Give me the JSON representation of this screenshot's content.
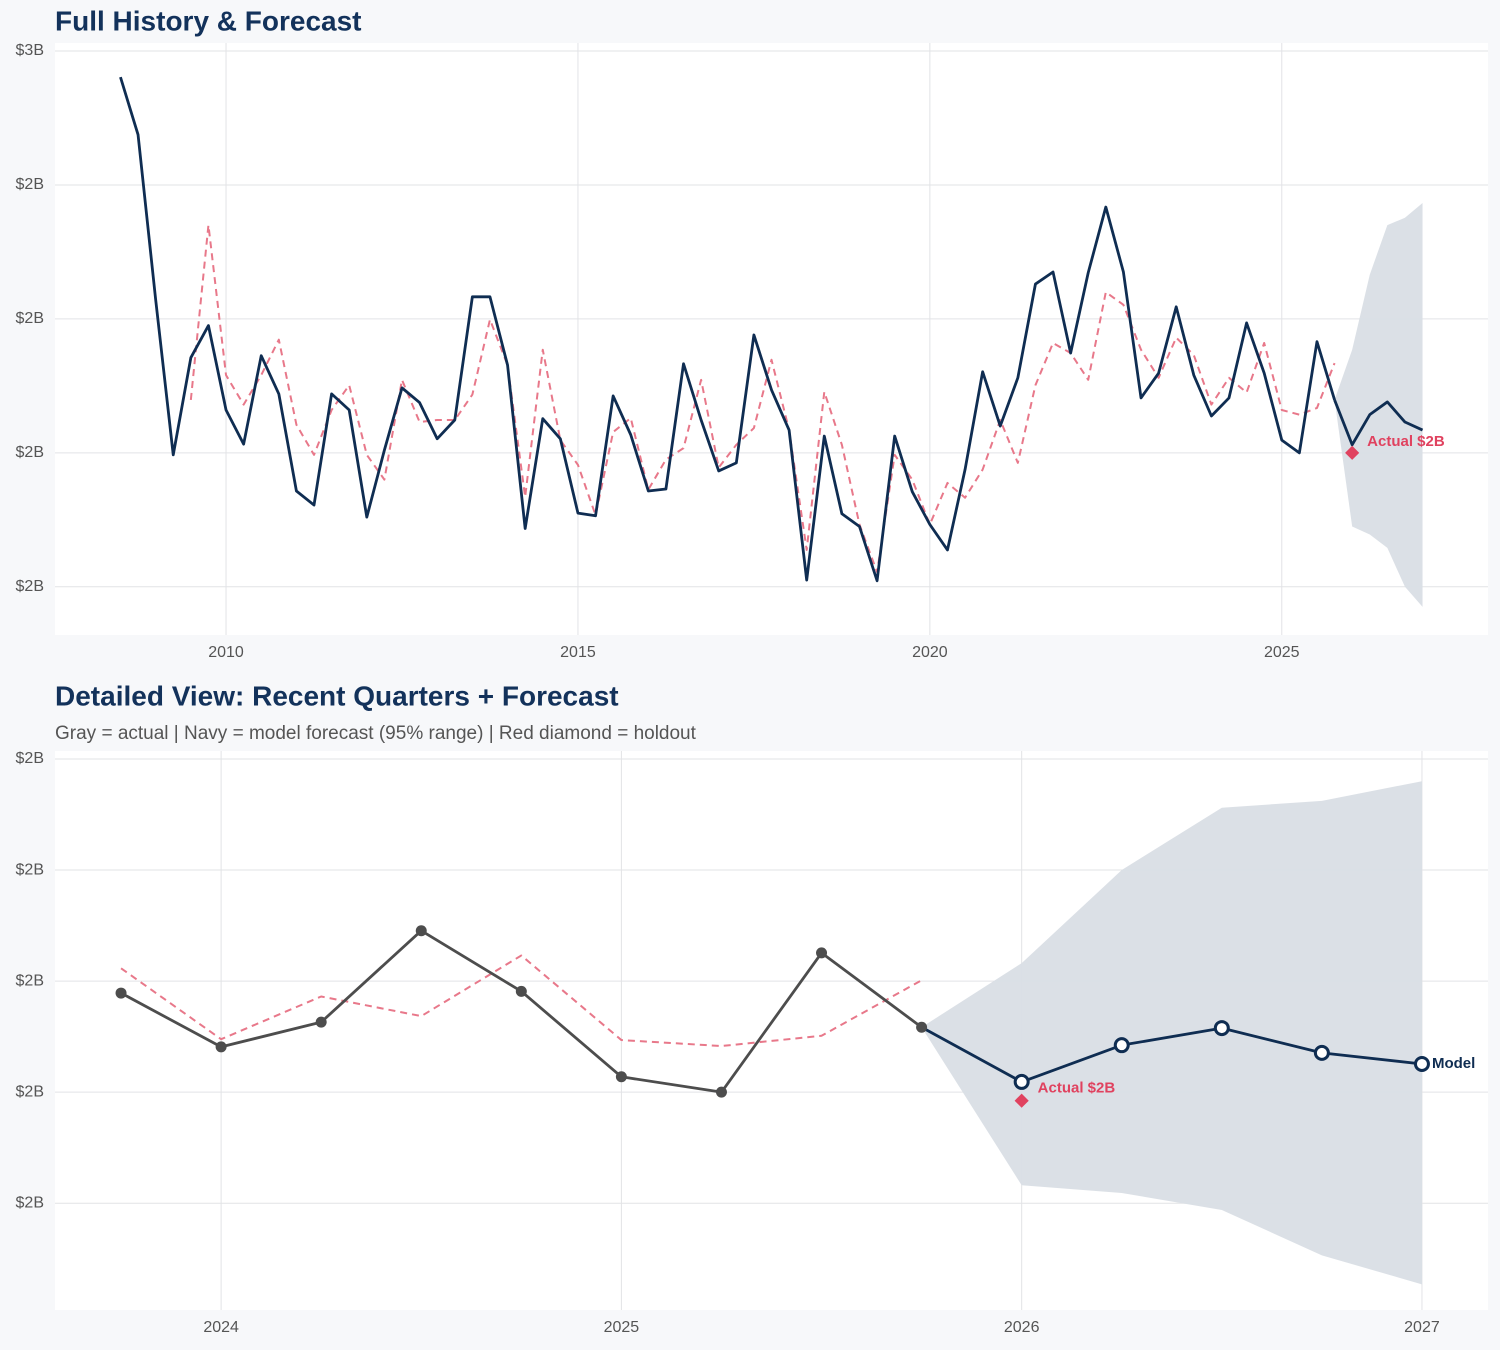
{
  "chart_data": [
    {
      "type": "line",
      "title": "Full History & Forecast",
      "xlim": [
        2007.57,
        2027.93
      ],
      "xticks": [
        2010,
        2015,
        2020,
        2025
      ],
      "ylim": [
        1.728,
        2.6
      ],
      "yticks": [
        {
          "value": 2.6,
          "label": "$3B"
        },
        {
          "value": 2.4,
          "label": "$2B"
        },
        {
          "value": 2.2,
          "label": "$2B"
        },
        {
          "value": 2.0,
          "label": "$2B"
        },
        {
          "value": 1.8,
          "label": "$2B"
        }
      ],
      "grid": true,
      "markers": false,
      "x": [
        2008.5,
        2008.75,
        2009,
        2009.25,
        2009.5,
        2009.75,
        2010,
        2010.25,
        2010.5,
        2010.75,
        2011,
        2011.25,
        2011.5,
        2011.75,
        2012,
        2012.25,
        2012.5,
        2012.75,
        2013,
        2013.25,
        2013.5,
        2013.75,
        2014,
        2014.25,
        2014.5,
        2014.75,
        2015,
        2015.25,
        2015.5,
        2015.75,
        2016,
        2016.25,
        2016.5,
        2016.75,
        2017,
        2017.25,
        2017.5,
        2017.75,
        2018,
        2018.25,
        2018.5,
        2018.75,
        2019,
        2019.25,
        2019.5,
        2019.75,
        2020,
        2020.25,
        2020.5,
        2020.75,
        2021,
        2021.25,
        2021.5,
        2021.75,
        2022,
        2022.25,
        2022.5,
        2022.75,
        2023,
        2023.25,
        2023.5,
        2023.75,
        2024,
        2024.25,
        2024.5,
        2024.75,
        2025,
        2025.25,
        2025.5,
        2025.75
      ],
      "series": [
        {
          "color": "#0f2d52",
          "dash": false,
          "values": [
            2.561,
            2.475,
            2.229,
            1.997,
            2.142,
            2.19,
            2.064,
            2.013,
            2.145,
            2.088,
            1.943,
            1.922,
            2.088,
            2.064,
            1.904,
            2.004,
            2.097,
            2.075,
            2.021,
            2.049,
            2.233,
            2.233,
            2.131,
            1.887,
            2.051,
            2.021,
            1.91,
            1.906,
            2.085,
            2.027,
            1.943,
            1.946,
            2.133,
            2.049,
            1.973,
            1.985,
            2.176,
            2.094,
            2.034,
            1.81,
            2.025,
            1.909,
            1.89,
            1.809,
            2.025,
            1.942,
            1.893,
            1.855,
            1.975,
            2.121,
            2.04,
            2.112,
            2.252,
            2.27,
            2.149,
            2.269,
            2.367,
            2.27,
            2.082,
            2.119,
            2.218,
            2.116,
            2.055,
            2.082,
            2.194,
            2.119,
            2.019,
            2.0,
            2.166,
            2.079
          ]
        },
        {
          "color": "#e8788a",
          "dash": true,
          "values": [
            null,
            null,
            null,
            null,
            2.079,
            2.34,
            2.116,
            2.072,
            2.116,
            2.169,
            2.042,
            1.997,
            2.064,
            2.101,
            1.997,
            1.96,
            2.109,
            2.046,
            2.049,
            2.049,
            2.087,
            2.199,
            2.131,
            1.934,
            2.154,
            2.019,
            1.982,
            1.907,
            2.031,
            2.052,
            1.945,
            1.99,
            2.007,
            2.109,
            1.978,
            2.012,
            2.037,
            2.139,
            2.034,
            1.855,
            2.091,
            2.012,
            1.893,
            1.822,
            1.997,
            1.96,
            1.893,
            1.955,
            1.933,
            1.975,
            2.049,
            1.985,
            2.101,
            2.164,
            2.149,
            2.109,
            2.24,
            2.221,
            2.154,
            2.112,
            2.172,
            2.146,
            2.072,
            2.112,
            2.09,
            2.164,
            2.064,
            2.057,
            2.067,
            2.134
          ]
        }
      ],
      "forecast": {
        "color": "#0f2d52",
        "band_color": "#d9dee5",
        "x": [
          2025.75,
          2026,
          2026.25,
          2026.5,
          2026.75,
          2027
        ],
        "values": [
          2.079,
          2.012,
          2.057,
          2.076,
          2.046,
          2.034
        ],
        "lower": [
          2.079,
          1.89,
          1.878,
          1.858,
          1.8,
          1.77
        ],
        "upper": [
          2.079,
          2.154,
          2.266,
          2.34,
          2.351,
          2.373
        ]
      },
      "holdout": {
        "x": 2026,
        "value": 2.0,
        "label": "Actual $2B",
        "color": "#e0425f"
      }
    },
    {
      "type": "line",
      "title": "Detailed View: Recent Quarters + Forecast",
      "subtitle": "Gray = actual  |  Navy = model forecast (95% range)  |  Red diamond = holdout",
      "xlim": [
        2023.585,
        2027.165
      ],
      "xticks": [
        2024,
        2025,
        2026,
        2027
      ],
      "ylim": [
        1.755,
        2.4
      ],
      "yticks": [
        {
          "value": 2.4,
          "label": "$2B"
        },
        {
          "value": 2.27,
          "label": "$2B"
        },
        {
          "value": 2.14,
          "label": "$2B"
        },
        {
          "value": 2.01,
          "label": "$2B"
        },
        {
          "value": 1.88,
          "label": "$2B"
        }
      ],
      "grid": true,
      "markers": true,
      "x": [
        2023.75,
        2024,
        2024.25,
        2024.5,
        2024.75,
        2025,
        2025.25,
        2025.5,
        2025.75
      ],
      "series": [
        {
          "color": "#4d4d4d",
          "dash": false,
          "values": [
            2.126,
            2.063,
            2.092,
            2.199,
            2.128,
            2.028,
            2.01,
            2.173,
            2.086
          ]
        },
        {
          "color": "#e8788a",
          "dash": true,
          "values": [
            2.155,
            2.072,
            2.122,
            2.099,
            2.17,
            2.071,
            2.064,
            2.076,
            2.141
          ]
        }
      ],
      "forecast": {
        "color": "#0f2d52",
        "band_color": "#d9dee5",
        "x": [
          2025.75,
          2026,
          2026.25,
          2026.5,
          2026.75,
          2027
        ],
        "values": [
          2.086,
          2.022,
          2.065,
          2.085,
          2.056,
          2.043
        ],
        "lower": [
          2.086,
          1.901,
          1.892,
          1.872,
          1.819,
          1.785
        ],
        "upper": [
          2.086,
          2.161,
          2.27,
          2.343,
          2.351,
          2.374
        ],
        "end_label": "Model"
      },
      "holdout": {
        "x": 2026,
        "value": 2.0,
        "label": "Actual $2B",
        "color": "#e0425f"
      }
    }
  ]
}
